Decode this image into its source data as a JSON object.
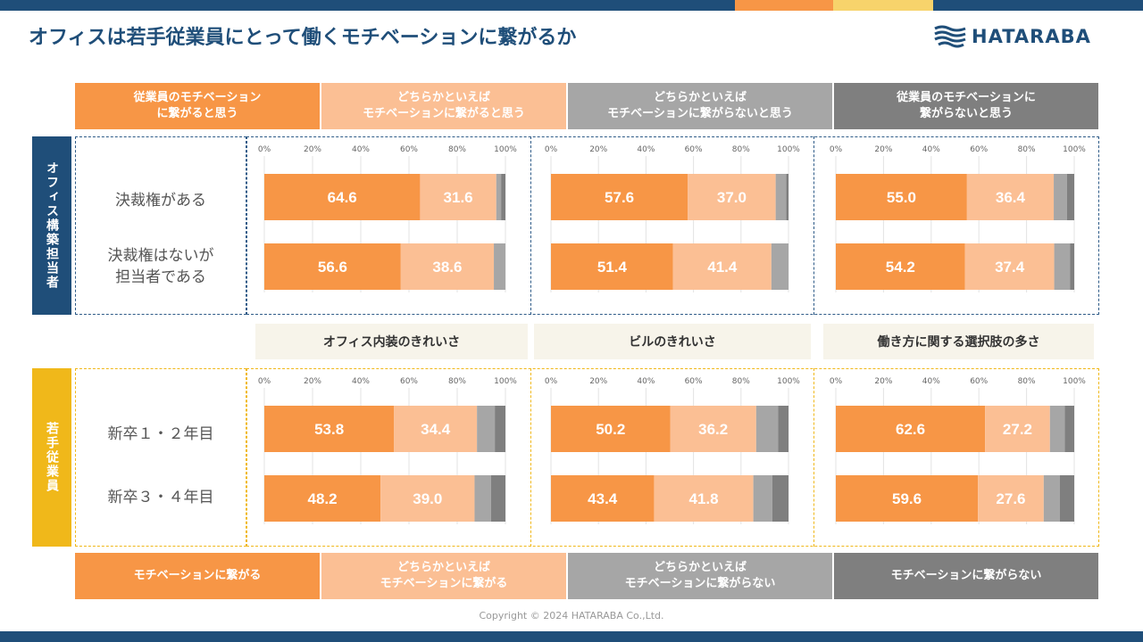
{
  "title": "オフィスは若手従業員にとって働くモチベーションに繋がるか",
  "logo_text": "HATARABA",
  "copyright": "Copyright © 2024 HATARABA Co.,Ltd.",
  "legend_top": [
    "従業員のモチベーション\nに繋がると思う",
    "どちらかといえば\nモチベーションに繋がると思う",
    "どちらかといえば\nモチベーションに繋がらないと思う",
    "従業員のモチベーションに\n繋がらないと思う"
  ],
  "legend_bottom": [
    "モチベーションに繋がる",
    "どちらかといえば\nモチベーションに繋がる",
    "どちらかといえば\nモチベーションに繋がらない",
    "モチベーションに繋がらない"
  ],
  "colors": {
    "seg1": "#f79646",
    "seg2": "#fbbf94",
    "seg3": "#a6a6a6",
    "seg4": "#7f7f7f",
    "navy": "#1f4e79",
    "yellow": "#f0b81a"
  },
  "groups": {
    "top": {
      "label": "オフィス構築担当者"
    },
    "bottom": {
      "label": "若手従業員"
    }
  },
  "row_labels": {
    "top": [
      "決裁権がある",
      "決裁権はないが\n担当者である"
    ],
    "bottom": [
      "新卒１・２年目",
      "新卒３・４年目"
    ]
  },
  "section_headers": [
    "オフィス内装のきれいさ",
    "ビルのきれいさ",
    "働き方に関する選択肢の多さ"
  ],
  "chart_data": {
    "type": "bar",
    "stacked": true,
    "orientation": "horizontal",
    "xlim": [
      0,
      100
    ],
    "xticks": [
      "0%",
      "20%",
      "40%",
      "60%",
      "80%",
      "100%"
    ],
    "panels": [
      {
        "group": "オフィス構築担当者",
        "section": "オフィス内装のきれいさ",
        "rows": [
          {
            "category": "決裁権がある",
            "values": [
              64.6,
              31.6,
              2.0,
              1.8
            ]
          },
          {
            "category": "決裁権はないが担当者である",
            "values": [
              56.6,
              38.6,
              4.8,
              0
            ]
          }
        ]
      },
      {
        "group": "オフィス構築担当者",
        "section": "ビルのきれいさ",
        "rows": [
          {
            "category": "決裁権がある",
            "values": [
              57.6,
              37.0,
              4.4,
              1.0
            ]
          },
          {
            "category": "決裁権はないが担当者である",
            "values": [
              51.4,
              41.4,
              7.2,
              0
            ]
          }
        ]
      },
      {
        "group": "オフィス構築担当者",
        "section": "働き方に関する選択肢の多さ",
        "rows": [
          {
            "category": "決裁権がある",
            "values": [
              55.0,
              36.4,
              5.6,
              3.0
            ]
          },
          {
            "category": "決裁権はないが担当者である",
            "values": [
              54.2,
              37.4,
              6.6,
              1.8
            ]
          }
        ]
      },
      {
        "group": "若手従業員",
        "section": "オフィス内装のきれいさ",
        "rows": [
          {
            "category": "新卒１・２年目",
            "values": [
              53.8,
              34.4,
              7.4,
              4.4
            ]
          },
          {
            "category": "新卒３・４年目",
            "values": [
              48.2,
              39.0,
              6.8,
              6.0
            ]
          }
        ]
      },
      {
        "group": "若手従業員",
        "section": "ビルのきれいさ",
        "rows": [
          {
            "category": "新卒１・２年目",
            "values": [
              50.2,
              36.2,
              9.2,
              4.4
            ]
          },
          {
            "category": "新卒３・４年目",
            "values": [
              43.4,
              41.8,
              8.0,
              6.8
            ]
          }
        ]
      },
      {
        "group": "若手従業員",
        "section": "働き方に関する選択肢の多さ",
        "rows": [
          {
            "category": "新卒１・２年目",
            "values": [
              62.6,
              27.2,
              6.2,
              4.0
            ]
          },
          {
            "category": "新卒３・４年目",
            "values": [
              59.6,
              27.6,
              6.8,
              6.0
            ]
          }
        ]
      }
    ]
  }
}
